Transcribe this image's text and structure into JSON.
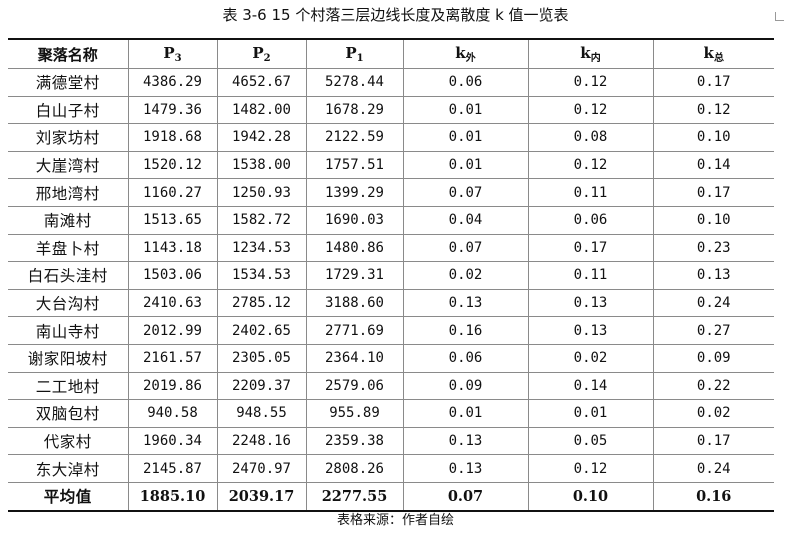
{
  "caption": "表 3-6 15 个村落三层边线长度及离散度 k 值一览表",
  "source": "表格来源：作者自绘",
  "table": {
    "header": [
      {
        "main": "聚落名称",
        "sub": ""
      },
      {
        "main": "P",
        "sub": "3"
      },
      {
        "main": "P",
        "sub": "2"
      },
      {
        "main": "P",
        "sub": "1"
      },
      {
        "main": "k",
        "sub": "外"
      },
      {
        "main": "k",
        "sub": "内"
      },
      {
        "main": "k",
        "sub": "总"
      }
    ],
    "rows": [
      [
        "满德堂村",
        "4386.29",
        "4652.67",
        "5278.44",
        "0.06",
        "0.12",
        "0.17"
      ],
      [
        "白山子村",
        "1479.36",
        "1482.00",
        "1678.29",
        "0.01",
        "0.12",
        "0.12"
      ],
      [
        "刘家坊村",
        "1918.68",
        "1942.28",
        "2122.59",
        "0.01",
        "0.08",
        "0.10"
      ],
      [
        "大崖湾村",
        "1520.12",
        "1538.00",
        "1757.51",
        "0.01",
        "0.12",
        "0.14"
      ],
      [
        "邢地湾村",
        "1160.27",
        "1250.93",
        "1399.29",
        "0.07",
        "0.11",
        "0.17"
      ],
      [
        "南滩村",
        "1513.65",
        "1582.72",
        "1690.03",
        "0.04",
        "0.06",
        "0.10"
      ],
      [
        "羊盘卜村",
        "1143.18",
        "1234.53",
        "1480.86",
        "0.07",
        "0.17",
        "0.23"
      ],
      [
        "白石头洼村",
        "1503.06",
        "1534.53",
        "1729.31",
        "0.02",
        "0.11",
        "0.13"
      ],
      [
        "大台沟村",
        "2410.63",
        "2785.12",
        "3188.60",
        "0.13",
        "0.13",
        "0.24"
      ],
      [
        "南山寺村",
        "2012.99",
        "2402.65",
        "2771.69",
        "0.16",
        "0.13",
        "0.27"
      ],
      [
        "谢家阳坡村",
        "2161.57",
        "2305.05",
        "2364.10",
        "0.06",
        "0.02",
        "0.09"
      ],
      [
        "二工地村",
        "2019.86",
        "2209.37",
        "2579.06",
        "0.09",
        "0.14",
        "0.22"
      ],
      [
        "双脑包村",
        "940.58",
        "948.55",
        "955.89",
        "0.01",
        "0.01",
        "0.02"
      ],
      [
        "代家村",
        "1960.34",
        "2248.16",
        "2359.38",
        "0.13",
        "0.05",
        "0.17"
      ],
      [
        "东大淖村",
        "2145.87",
        "2470.97",
        "2808.26",
        "0.13",
        "0.12",
        "0.24"
      ],
      [
        "平均值",
        "1885.10",
        "2039.17",
        "2277.55",
        "0.07",
        "0.10",
        "0.16"
      ]
    ]
  }
}
